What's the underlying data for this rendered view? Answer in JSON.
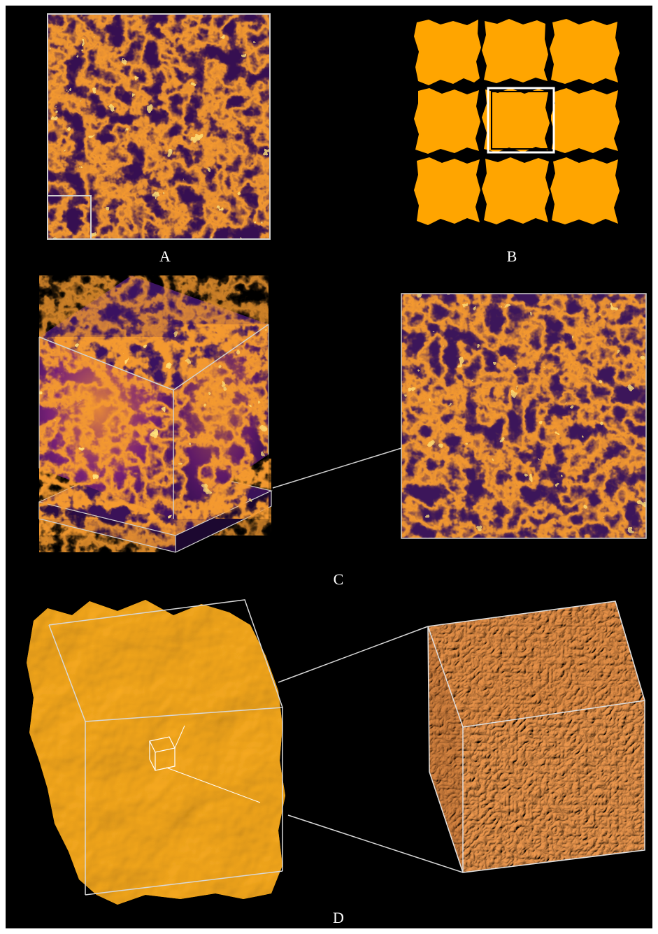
{
  "figure": {
    "panel_labels": {
      "a": "A",
      "b": "B",
      "c": "C",
      "d": "D"
    },
    "colors": {
      "background": "#000000",
      "frame": "#d0d0d0",
      "density_dark": "#1a0a2e",
      "density_mid": "#5a1e7a",
      "filament": "#f08a2c",
      "filament_bright": "#ffe070",
      "tile_orange": "#ffa500",
      "surface_orange": "#e89a10",
      "cells_orange": "#d27a30"
    }
  }
}
